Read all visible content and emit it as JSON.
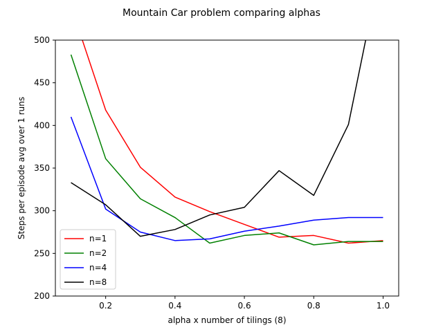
{
  "chart_data": {
    "type": "line",
    "title": "Mountain Car problem comparing alphas",
    "xlabel": "alpha x number of tilings (8)",
    "ylabel": "Steps per episode avg over 1 runs",
    "xlim": [
      0.055,
      1.045
    ],
    "ylim": [
      200,
      500
    ],
    "xticks": [
      0.2,
      0.4,
      0.6,
      0.8,
      1.0
    ],
    "xtick_labels": [
      "0.2",
      "0.4",
      "0.6",
      "0.8",
      "1.0"
    ],
    "yticks": [
      200,
      250,
      300,
      350,
      400,
      450,
      500
    ],
    "ytick_labels": [
      "200",
      "250",
      "300",
      "350",
      "400",
      "450",
      "500"
    ],
    "grid": false,
    "legend_position": "lower-left",
    "x": [
      0.1,
      0.2,
      0.3,
      0.4,
      0.5,
      0.6,
      0.7,
      0.8,
      0.9,
      1.0
    ],
    "series": [
      {
        "name": "n=1",
        "color": "#ff0000",
        "values": [
          540,
          418,
          351,
          316,
          299,
          284,
          269,
          271,
          262,
          265
        ]
      },
      {
        "name": "n=2",
        "color": "#008000",
        "values": [
          483,
          361,
          314,
          292,
          262,
          271,
          274,
          260,
          264,
          264
        ]
      },
      {
        "name": "n=4",
        "color": "#0000ff",
        "values": [
          410,
          302,
          275,
          265,
          267,
          276,
          282,
          289,
          292,
          292
        ]
      },
      {
        "name": "n=8",
        "color": "#000000",
        "values": [
          333,
          307,
          270,
          278,
          295,
          304,
          347,
          318,
          401,
          600
        ]
      }
    ]
  }
}
